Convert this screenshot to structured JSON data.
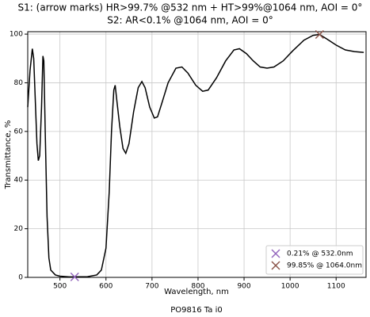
{
  "chart_data": {
    "type": "line",
    "title": [
      "S1: (arrow marks) HR>99.7% @532 nm + HT>99%@1064 nm, AOI = 0°",
      "S2: AR<0.1% @1064 nm, AOI = 0°"
    ],
    "x_label": "Wavelength, nm",
    "y_label": "Transmittance, %",
    "footer": "PO9816 Ta i0",
    "xlim": [
      430,
      1165
    ],
    "ylim": [
      0,
      101
    ],
    "xticks": [
      500,
      600,
      700,
      800,
      900,
      1000,
      1100
    ],
    "yticks": [
      0,
      20,
      40,
      60,
      80,
      100
    ],
    "grid": true,
    "legend": "lower right",
    "series": [
      {
        "color": "#000000",
        "x": [
          430,
          435,
          440,
          443,
          447,
          450,
          453,
          456,
          460,
          463,
          465,
          468,
          472,
          476,
          480,
          490,
          500,
          520,
          532,
          560,
          580,
          590,
          600,
          607,
          612,
          617,
          620,
          624,
          630,
          637,
          643,
          650,
          660,
          670,
          678,
          685,
          695,
          705,
          712,
          722,
          735,
          752,
          765,
          778,
          795,
          810,
          822,
          840,
          860,
          878,
          890,
          905,
          920,
          935,
          950,
          965,
          985,
          1005,
          1030,
          1050,
          1064,
          1080,
          1100,
          1120,
          1140,
          1160
        ],
        "values": [
          70,
          85,
          94,
          90,
          70,
          55,
          48,
          50,
          70,
          91,
          89,
          60,
          25,
          8,
          3,
          1,
          0.5,
          0.2,
          0.2,
          0.3,
          1,
          3,
          12,
          35,
          60,
          77,
          79,
          72,
          62,
          53,
          51,
          55,
          68,
          78,
          80.5,
          78,
          70,
          65.5,
          66,
          72,
          80,
          86,
          86.5,
          84,
          79,
          76.5,
          77,
          82,
          89,
          93.5,
          94,
          92,
          89,
          86.5,
          86,
          86.5,
          89,
          93,
          97.5,
          99.5,
          99.85,
          98,
          95.5,
          93.5,
          92.8,
          92.5
        ]
      },
      {
        "type": "marker",
        "name": "0.21% @ 532.0nm",
        "color": "#9467bd",
        "x": [
          532
        ],
        "values": [
          0.21
        ]
      },
      {
        "type": "marker",
        "name": "99.85% @ 1064.0nm",
        "color": "#8c564b",
        "x": [
          1064
        ],
        "values": [
          99.85
        ]
      }
    ]
  }
}
